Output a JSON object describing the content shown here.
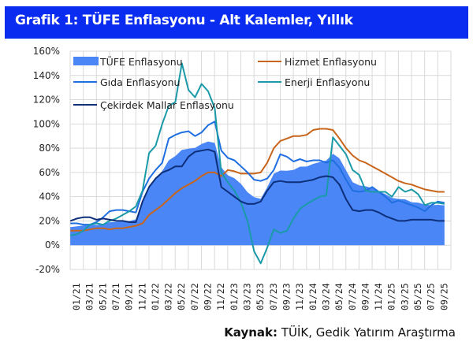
{
  "title": "Grafik 1: TÜFE Enflasyonu - Alt Kalemler, Yıllık",
  "source": {
    "label": "Kaynak:",
    "text": "TÜİK, Gedik Yatırım Araştırma"
  },
  "colors": {
    "title_bg": "#0a2cf0",
    "tufe": "#4a86f5",
    "hizmet": "#c8651b",
    "gida": "#1f6fe0",
    "enerji": "#1a9aa8",
    "cekirdek": "#0d2f7a",
    "grid": "#d9d9d9"
  },
  "chart_data": {
    "type": "line",
    "title": "Grafik 1: TÜFE Enflasyonu - Alt Kalemler, Yıllık",
    "xlabel": "",
    "ylabel": "",
    "ylim": [
      -20,
      160
    ],
    "yticks": [
      "160%",
      "140%",
      "120%",
      "100%",
      "80%",
      "60%",
      "40%",
      "20%",
      "0%",
      "-20%"
    ],
    "ytick_values": [
      160,
      140,
      120,
      100,
      80,
      60,
      40,
      20,
      0,
      -20
    ],
    "xtick_labels": [
      "01/21",
      "03/21",
      "05/21",
      "07/21",
      "09/21",
      "11/21",
      "01/22",
      "03/22",
      "05/22",
      "07/22",
      "09/22",
      "11/22",
      "01/23",
      "03/23",
      "05/23",
      "07/23",
      "09/23",
      "11/23",
      "01/24",
      "03/24",
      "05/24",
      "07/24",
      "09/24",
      "11/24",
      "01/25",
      "03/25",
      "05/25",
      "07/25",
      "09/25"
    ],
    "x_start": "01/21",
    "x_end": "10/25",
    "frequency": "monthly",
    "grid": true,
    "legend_placement": "top-left",
    "series": [
      {
        "name": "TÜFE Enflasyonu",
        "kind": "area",
        "color": "#4a86f5",
        "values": [
          14.97,
          15.61,
          16.19,
          17.14,
          16.59,
          17.53,
          18.95,
          19.25,
          19.58,
          19.89,
          21.31,
          36.08,
          48.69,
          54.44,
          61.14,
          69.97,
          73.5,
          78.62,
          79.6,
          80.21,
          83.45,
          85.51,
          84.39,
          64.27,
          57.68,
          55.18,
          50.51,
          43.68,
          39.59,
          38.21,
          47.83,
          58.94,
          61.53,
          61.36,
          61.98,
          64.77,
          64.86,
          67.07,
          68.5,
          69.8,
          75.45,
          71.6,
          61.78,
          51.97,
          49.38,
          48.58,
          47.09,
          44.38,
          42.12,
          39.05,
          38.1,
          37.86,
          35.41,
          35.05,
          33.52,
          32.95,
          33.29,
          32.87
        ]
      },
      {
        "name": "Hizmet Enflasyonu",
        "kind": "line",
        "color": "#c8651b",
        "values": [
          12,
          12,
          12,
          13,
          14,
          14,
          13,
          14,
          14,
          15,
          16,
          18,
          25,
          29,
          33,
          38,
          43,
          47,
          50,
          53,
          57,
          60,
          60,
          57,
          62,
          61,
          59,
          59,
          59,
          60,
          68,
          80,
          86,
          88,
          90,
          90,
          91,
          95,
          96,
          96,
          95,
          88,
          80,
          74,
          70,
          68,
          65,
          62,
          59,
          56,
          53,
          51,
          50,
          48,
          46,
          45,
          44,
          44
        ]
      },
      {
        "name": "Gıda Enflasyonu",
        "kind": "line",
        "color": "#1f6fe0",
        "values": [
          18,
          18,
          17,
          17,
          19,
          23,
          28,
          29,
          29,
          28,
          27,
          44,
          55,
          62,
          68,
          88,
          91,
          93,
          94,
          90,
          93,
          99,
          102,
          78,
          72,
          70,
          65,
          60,
          54,
          53,
          55,
          62,
          75,
          73,
          69,
          71,
          69,
          70,
          70,
          68,
          70,
          64,
          54,
          45,
          44,
          45,
          48,
          44,
          40,
          35,
          37,
          35,
          33,
          31,
          28,
          33,
          36,
          35
        ]
      },
      {
        "name": "Enerji Enflasyonu",
        "kind": "line",
        "color": "#1a9aa8",
        "values": [
          8,
          9,
          12,
          17,
          18,
          17,
          20,
          22,
          25,
          28,
          32,
          45,
          76,
          82,
          100,
          115,
          118,
          150,
          128,
          122,
          133,
          127,
          113,
          60,
          52,
          45,
          35,
          20,
          -5,
          -15,
          -2,
          13,
          10,
          12,
          22,
          30,
          34,
          37,
          40,
          41,
          89,
          82,
          75,
          62,
          58,
          45,
          44,
          44,
          44,
          40,
          48,
          44,
          46,
          42,
          33,
          35,
          35,
          34
        ]
      },
      {
        "name": "Çekirdek Mallar Enflasyonu",
        "kind": "line",
        "color": "#0d2f7a",
        "values": [
          20,
          22,
          23,
          23,
          21,
          22,
          21,
          20,
          20,
          19,
          19,
          36,
          48,
          55,
          60,
          62,
          65,
          65,
          73,
          77,
          78,
          79,
          77,
          48,
          44,
          40,
          36,
          34,
          34,
          36,
          45,
          52,
          53,
          52,
          52,
          52,
          53,
          54,
          56,
          57,
          56,
          50,
          38,
          29,
          28,
          29,
          29,
          27,
          24,
          22,
          20,
          20,
          21,
          21,
          21,
          21,
          20,
          20
        ]
      }
    ]
  }
}
